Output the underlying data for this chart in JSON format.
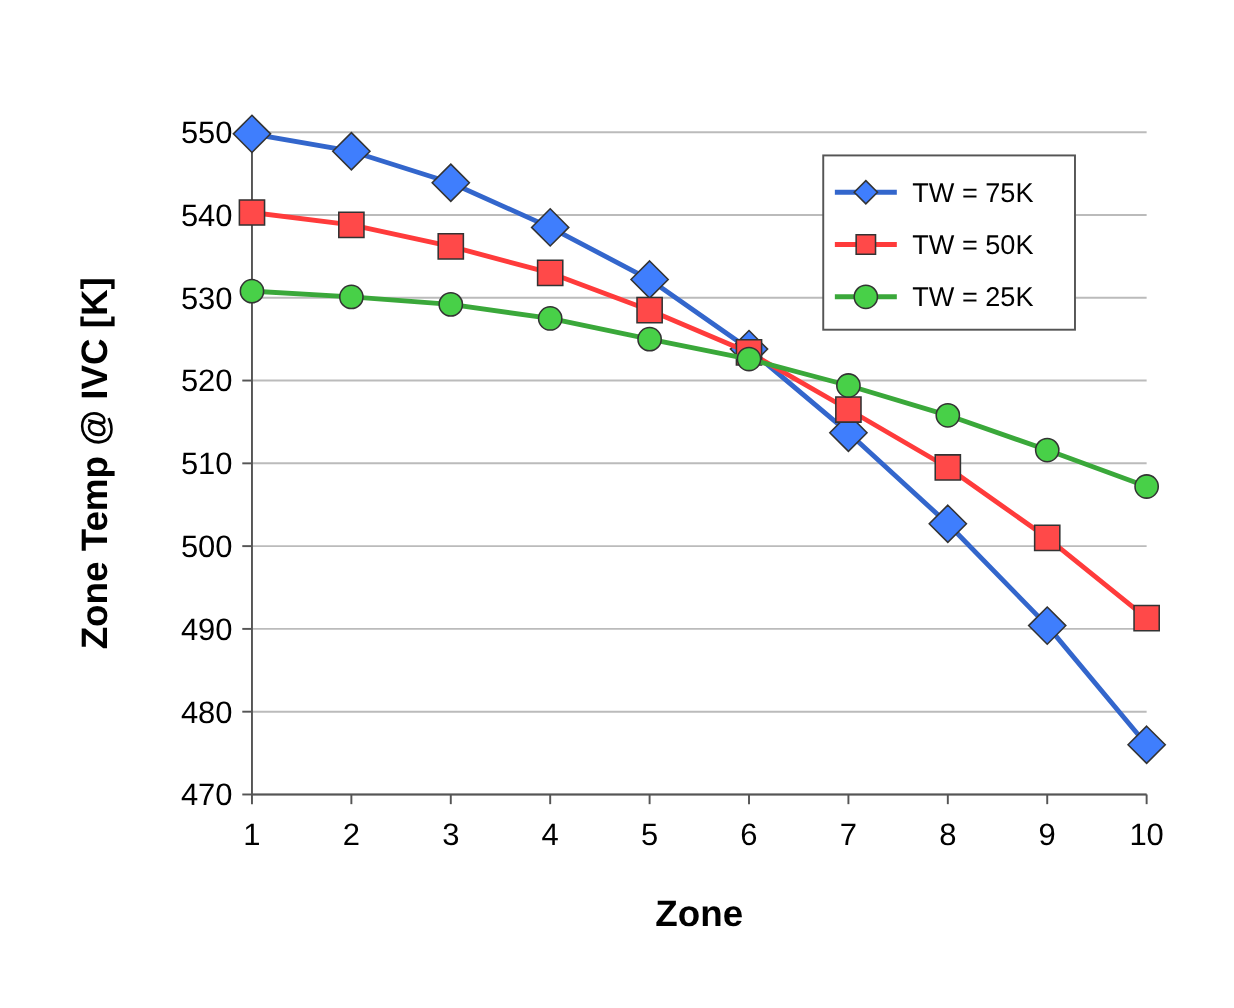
{
  "chart_data": {
    "type": "line",
    "xlabel": "Zone",
    "ylabel": "Zone Temp @ IVC [K]",
    "x": [
      1,
      2,
      3,
      4,
      5,
      6,
      7,
      8,
      9,
      10
    ],
    "series": [
      {
        "name": "TW = 75K",
        "color": "#3366cc",
        "marker": "diamond",
        "values": [
          549.8,
          547.7,
          543.9,
          538.5,
          532.2,
          523.8,
          513.7,
          502.7,
          490.4,
          476
        ]
      },
      {
        "name": "TW = 50K",
        "color": "#ff3b3b",
        "marker": "square",
        "values": [
          540.3,
          538.8,
          536.2,
          533,
          528.5,
          523.4,
          516.5,
          509.5,
          501,
          491.3
        ]
      },
      {
        "name": "TW = 25K",
        "color": "#3aa83a",
        "marker": "circle",
        "values": [
          530.8,
          530.1,
          529.2,
          527.5,
          525,
          522.6,
          519.4,
          515.8,
          511.6,
          507.2
        ]
      }
    ],
    "xlim": [
      1,
      10
    ],
    "xticks": [
      1,
      2,
      3,
      4,
      5,
      6,
      7,
      8,
      9,
      10
    ],
    "ylim": [
      470,
      550
    ],
    "yticks": [
      470,
      480,
      490,
      500,
      510,
      520,
      530,
      540,
      550
    ],
    "grid": "y",
    "legend": "top right",
    "line_style": "solid"
  }
}
